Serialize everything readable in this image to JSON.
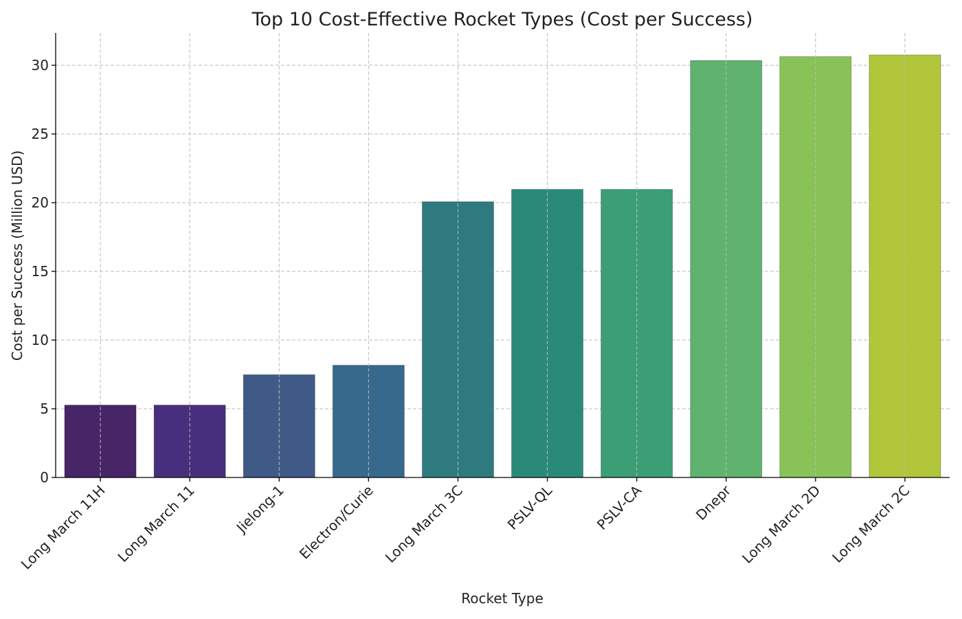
{
  "chart_data": {
    "type": "bar",
    "title": "Top 10 Cost-Effective Rocket Types (Cost per Success)",
    "xlabel": "Rocket Type",
    "ylabel": "Cost per Success (Million USD)",
    "categories": [
      "Long March 11H",
      "Long March 11",
      "Jielong-1",
      "Electron/Curie",
      "Long March 3C",
      "PSLV-QL",
      "PSLV-CA",
      "Dnepr",
      "Long March 2D",
      "Long March 2C"
    ],
    "values": [
      5.27,
      5.27,
      7.48,
      8.17,
      20.07,
      20.97,
      20.97,
      30.35,
      30.63,
      30.75
    ],
    "colors": [
      "#482566",
      "#472f7d",
      "#3f5a86",
      "#36698c",
      "#2e7a7e",
      "#2a8a7a",
      "#3c9e77",
      "#5fb36f",
      "#89c256",
      "#b1c63a"
    ],
    "ylim": [
      0,
      32.35
    ],
    "yticks": [
      0,
      5,
      10,
      15,
      20,
      25,
      30
    ],
    "grid": true
  }
}
